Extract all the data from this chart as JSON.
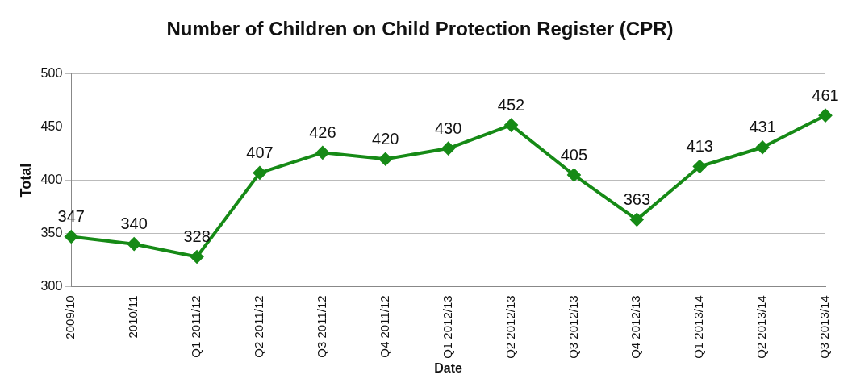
{
  "chart_data": {
    "type": "line",
    "title": "Number of Children on Child Protection Register (CPR)",
    "xlabel": "Date",
    "ylabel": "Total",
    "categories": [
      "2009/10",
      "2010/11",
      "Q1 2011/12",
      "Q2 2011/12",
      "Q3 2011/12",
      "Q4 2011/12",
      "Q1 2012/13",
      "Q2 2012/13",
      "Q3 2012/13",
      "Q4 2012/13",
      "Q1 2013/14",
      "Q2 2013/14",
      "Q3 2013/14"
    ],
    "series": [
      {
        "color": "#168a16",
        "values": [
          347,
          340,
          328,
          407,
          426,
          420,
          430,
          452,
          405,
          363,
          413,
          431,
          461
        ]
      }
    ],
    "ylim": [
      300,
      500
    ],
    "yticks": [
      300,
      350,
      400,
      450,
      500
    ],
    "grid": "y",
    "legend": false,
    "marker": "diamond",
    "line_style": "solid",
    "data_labels": true
  }
}
